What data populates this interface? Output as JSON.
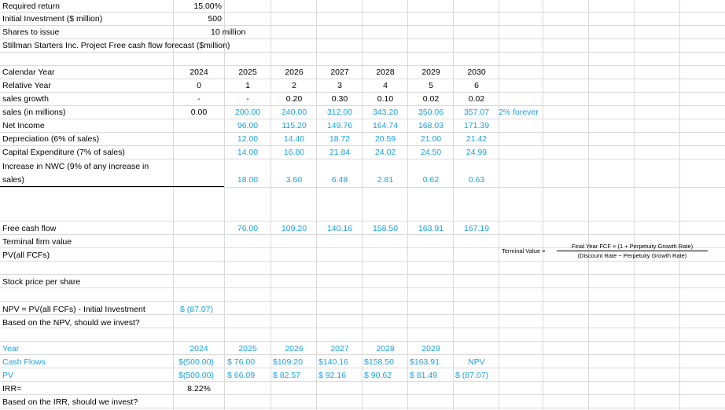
{
  "header": {
    "required_return_label": "Required return",
    "required_return_value": "15.00%",
    "initial_investment_label": "Initial Investment ($ million)",
    "initial_investment_value": "500",
    "shares_label": "Shares to issue",
    "shares_value": "10 million",
    "forecast_title": "Stillman Starters Inc. Project Free cash flow forecast ($million)"
  },
  "rows": {
    "calendar_year": "Calendar Year",
    "relative_year": "Relative Year",
    "sales_growth": "sales growth",
    "sales": "sales (in millions)",
    "net_income": "Net Income",
    "depreciation": "Depreciation (6% of sales)",
    "capex": "Capital Expenditure (7% of sales)",
    "nwc_line1": "Increase in NWC (9% of any increase in",
    "nwc_line2": "sales)",
    "fcf": "Free cash flow",
    "terminal": "Terminal firm value",
    "pv_all": "PV(all FCFs)",
    "stock_price": "Stock price per share",
    "npv_formula": "NPV = PV(all FCFs) - Initial Investment",
    "npv_value": "$ (87.07)",
    "npv_question": "Based on the NPV, should we invest?"
  },
  "years": [
    "2024",
    "2025",
    "2026",
    "2027",
    "2028",
    "2029",
    "2030"
  ],
  "relative": [
    "0",
    "1",
    "2",
    "3",
    "4",
    "5",
    "6"
  ],
  "growth": [
    "-",
    "-",
    "0.20",
    "0.30",
    "0.10",
    "0.02",
    "0.02"
  ],
  "sales": [
    "0.00",
    "200.00",
    "240.00",
    "312.00",
    "343.20",
    "350.06",
    "357.07"
  ],
  "forever_note": "2% forever",
  "net_income": [
    "96.00",
    "115.20",
    "149.76",
    "164.74",
    "168.03",
    "171.39"
  ],
  "depreciation": [
    "12.00",
    "14.40",
    "18.72",
    "20.59",
    "21.00",
    "21.42"
  ],
  "capex": [
    "14.00",
    "16.80",
    "21.84",
    "24.02",
    "24.50",
    "24.99"
  ],
  "nwc": [
    "18.00",
    "3.60",
    "6.48",
    "2.81",
    "0.62",
    "0.63"
  ],
  "fcf": [
    "76.00",
    "109.20",
    "140.16",
    "158.50",
    "163.91",
    "167.19"
  ],
  "terminal_formula": {
    "lhs": "Terminal Value =",
    "numerator": "Final Year FCF × (1 + Perpetuity Growth Rate)",
    "denominator": "(Discount Rate − Perpetuity Growth Rate)"
  },
  "bottom": {
    "year_label": "Year",
    "cash_flows_label": "Cash Flows",
    "pv_label": "PV",
    "irr_label": "IRR=",
    "irr_value": "8.22%",
    "irr_question": "Based on the IRR, should we invest?",
    "years": [
      "2024",
      "2025",
      "2026",
      "2027",
      "2028",
      "2029"
    ],
    "cash_flows": [
      "$(500.00)",
      "$ 76.00",
      "$109.20",
      "$140.16",
      "$158.50",
      "$163.91"
    ],
    "npv_header": "NPV",
    "pv": [
      "$(500.00)",
      "$ 66.09",
      "$ 82.57",
      "$ 92.16",
      "$ 90.62",
      "$ 81.49"
    ],
    "npv_value": "$ (87.07)"
  },
  "colors": {
    "accent": "#1aa1e0",
    "grid": "#dadada"
  }
}
